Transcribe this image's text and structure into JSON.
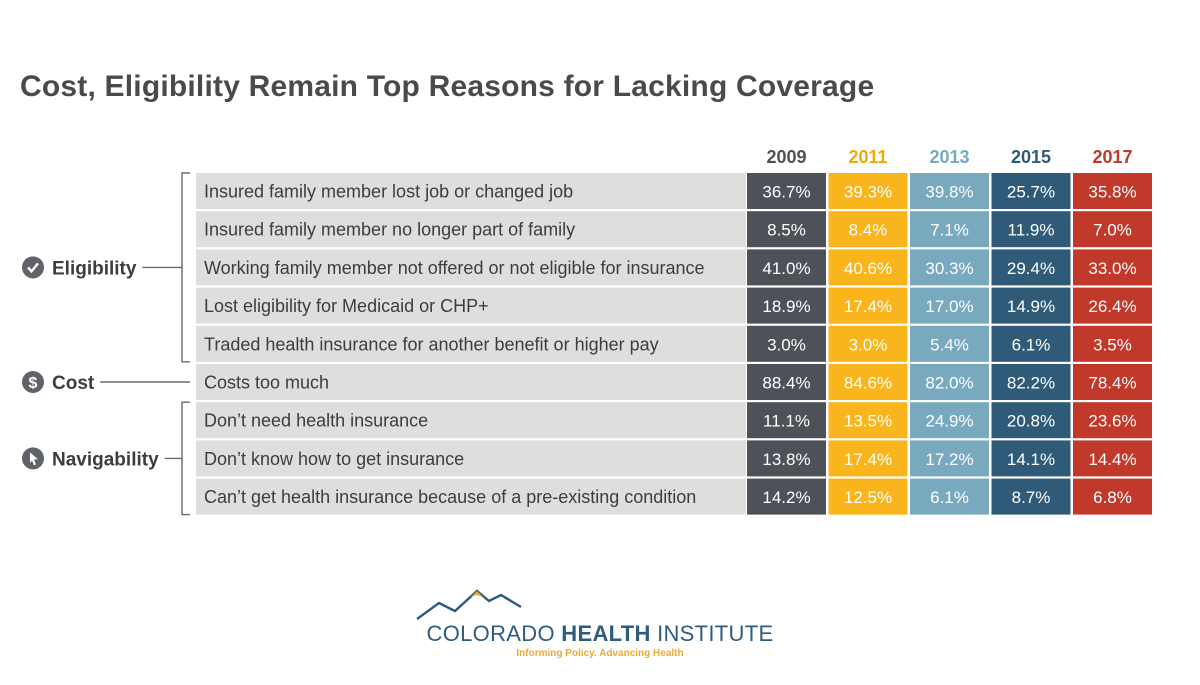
{
  "chart_data": {
    "type": "table",
    "title": "Cost, Eligibility Remain Top Reasons for Lacking Coverage",
    "columns": [
      {
        "year": "2009",
        "color": "#4d5258"
      },
      {
        "year": "2011",
        "color": "#f9b51b"
      },
      {
        "year": "2013",
        "color": "#79a9bf"
      },
      {
        "year": "2015",
        "color": "#2f5b78"
      },
      {
        "year": "2017",
        "color": "#c0392b"
      }
    ],
    "groups": [
      {
        "name": "Eligibility",
        "icon": "check-icon"
      },
      {
        "name": "Cost",
        "icon": "dollar-icon"
      },
      {
        "name": "Navigability",
        "icon": "cursor-icon"
      }
    ],
    "rows": [
      {
        "group": "Eligibility",
        "label": "Insured family member lost job or changed job",
        "values": [
          "36.7%",
          "39.3%",
          "39.8%",
          "25.7%",
          "35.8%"
        ]
      },
      {
        "group": "Eligibility",
        "label": "Insured family member no longer part of family",
        "values": [
          "8.5%",
          "8.4%",
          "7.1%",
          "11.9%",
          "7.0%"
        ]
      },
      {
        "group": "Eligibility",
        "label": "Working family member not offered or not eligible for insurance",
        "values": [
          "41.0%",
          "40.6%",
          "30.3%",
          "29.4%",
          "33.0%"
        ]
      },
      {
        "group": "Eligibility",
        "label": "Lost eligibility for Medicaid or CHP+",
        "values": [
          "18.9%",
          "17.4%",
          "17.0%",
          "14.9%",
          "26.4%"
        ]
      },
      {
        "group": "Eligibility",
        "label": "Traded health insurance for another benefit or higher pay",
        "values": [
          "3.0%",
          "3.0%",
          "5.4%",
          "6.1%",
          "3.5%"
        ]
      },
      {
        "group": "Cost",
        "label": "Costs too much",
        "values": [
          "88.4%",
          "84.6%",
          "82.0%",
          "82.2%",
          "78.4%"
        ]
      },
      {
        "group": "Navigability",
        "label": "Don’t need health insurance",
        "values": [
          "11.1%",
          "13.5%",
          "24.9%",
          "20.8%",
          "23.6%"
        ]
      },
      {
        "group": "Navigability",
        "label": "Don’t know how to get insurance",
        "values": [
          "13.8%",
          "17.4%",
          "17.2%",
          "14.1%",
          "14.4%"
        ]
      },
      {
        "group": "Navigability",
        "label": "Can’t get health insurance because of a pre-existing condition",
        "values": [
          "14.2%",
          "12.5%",
          "6.1%",
          "8.7%",
          "6.8%"
        ]
      }
    ]
  },
  "logo": {
    "name_part1": "COLORADO ",
    "name_part2": "HEALTH",
    "name_part3": " INSTITUTE",
    "tagline": "Informing Policy. Advancing Health",
    "colors": {
      "primary": "#2e5c7f",
      "accent": "#f0a830"
    }
  }
}
